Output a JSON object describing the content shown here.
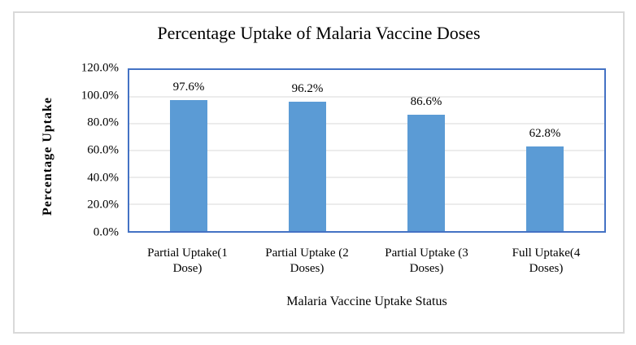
{
  "chart_data": {
    "type": "bar",
    "title": "Percentage Uptake of Malaria Vaccine Doses",
    "categories": [
      "Partial Uptake(1 Dose)",
      "Partial Uptake (2 Doses)",
      "Partial Uptake (3 Doses)",
      "Full Uptake(4 Doses)"
    ],
    "category_label_lines": [
      [
        "Partial Uptake(1",
        "Dose)"
      ],
      [
        "Partial Uptake (2",
        "Doses)"
      ],
      [
        "Partial Uptake (3",
        "Doses)"
      ],
      [
        "Full Uptake(4",
        "Doses)"
      ]
    ],
    "values": [
      97.6,
      96.2,
      86.6,
      62.8
    ],
    "data_labels": [
      "97.6%",
      "96.2%",
      "86.6%",
      "62.8%"
    ],
    "xlabel": "Malaria Vaccine Uptake Status",
    "ylabel": "Percentage Uptake",
    "ylim": [
      0,
      120
    ],
    "ytick_values": [
      120,
      100,
      80,
      60,
      40,
      20,
      0
    ],
    "ytick_labels": [
      "120.0%",
      "100.0%",
      "80.0%",
      "60.0%",
      "40.0%",
      "20.0%",
      "0.0%"
    ],
    "grid": true,
    "legend": "none",
    "colors": {
      "bar": "#5b9bd5",
      "plot_border": "#4472c4",
      "gridline": "#d9d9d9",
      "frame_border": "#d9d9d9",
      "text": "#000000"
    }
  }
}
